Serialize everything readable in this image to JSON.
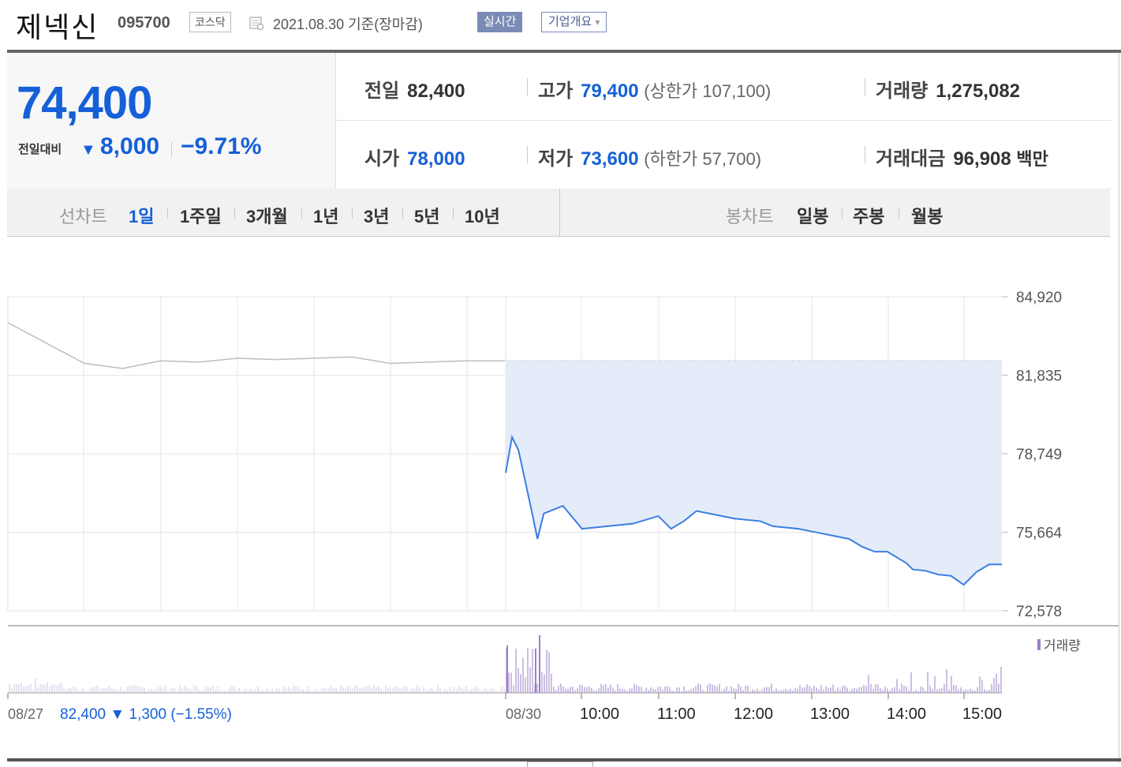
{
  "header": {
    "stock_name": "제넥신",
    "code": "095700",
    "market": "코스닥",
    "date": "2021.08.30",
    "date_note": "기준(장마감)",
    "realtime_label": "실시간",
    "company_label": "기업개요",
    "company_arrow": "▾"
  },
  "price": {
    "current": "74,400",
    "change_label": "전일대비",
    "change_arrow": "▼",
    "change": "8,000",
    "change_pct": "−9.71%"
  },
  "stats": {
    "prev_close_label": "전일",
    "prev_close": "82,400",
    "high_label": "고가",
    "high": "79,400",
    "upper_limit": "(상한가 107,100)",
    "volume_label": "거래량",
    "volume": "1,275,082",
    "open_label": "시가",
    "open": "78,000",
    "low_label": "저가",
    "low": "73,600",
    "lower_limit": "(하한가 57,700)",
    "amount_label": "거래대금",
    "amount": "96,908",
    "amount_unit": "백만"
  },
  "tabs": {
    "line_chart": "선차트",
    "line_periods": [
      "1일",
      "1주일",
      "3개월",
      "1년",
      "3년",
      "5년",
      "10년"
    ],
    "selected": "1일",
    "candle_chart": "봉차트",
    "candle_periods": [
      "일봉",
      "주봉",
      "월봉"
    ]
  },
  "chart_data": {
    "type": "line",
    "y_ticks": [
      "84,920",
      "81,835",
      "78,749",
      "75,664",
      "72,578"
    ],
    "ylim": [
      72578,
      84920
    ],
    "prev_close": 82400,
    "volume_legend": "거래량",
    "x_labels": [
      "08/27",
      "08/30",
      "10:00",
      "11:00",
      "12:00",
      "13:00",
      "14:00",
      "15:00"
    ],
    "prev_day_summary": {
      "close": "82,400",
      "arrow": "▼",
      "change": "1,300",
      "pct": "(−1.55%)"
    },
    "prev_day_series": {
      "x": [
        "09:00",
        "09:30",
        "10:00",
        "10:30",
        "11:00",
        "11:30",
        "12:00",
        "12:30",
        "13:00",
        "13:30",
        "14:00",
        "14:30",
        "15:00",
        "15:30"
      ],
      "values": [
        83900,
        83100,
        82300,
        82100,
        82400,
        82350,
        82500,
        82450,
        82500,
        82550,
        82300,
        82350,
        82400,
        82400
      ]
    },
    "today_series": {
      "x": [
        "09:00",
        "09:05",
        "09:10",
        "09:20",
        "09:25",
        "09:30",
        "09:45",
        "10:00",
        "10:20",
        "10:40",
        "11:00",
        "11:10",
        "11:20",
        "11:30",
        "11:40",
        "12:00",
        "12:20",
        "12:30",
        "12:50",
        "13:00",
        "13:10",
        "13:20",
        "13:30",
        "13:40",
        "13:50",
        "14:00",
        "14:10",
        "14:15",
        "14:20",
        "14:30",
        "14:40",
        "14:50",
        "15:00",
        "15:10",
        "15:20",
        "15:30"
      ],
      "values": [
        78000,
        79400,
        78900,
        76600,
        75400,
        76400,
        76700,
        75800,
        75900,
        76000,
        76300,
        75800,
        76100,
        76500,
        76400,
        76200,
        76100,
        75900,
        75800,
        75700,
        75600,
        75500,
        75400,
        75100,
        74900,
        74900,
        74600,
        74450,
        74200,
        74150,
        74000,
        73950,
        73600,
        74100,
        74400,
        74400
      ]
    }
  }
}
